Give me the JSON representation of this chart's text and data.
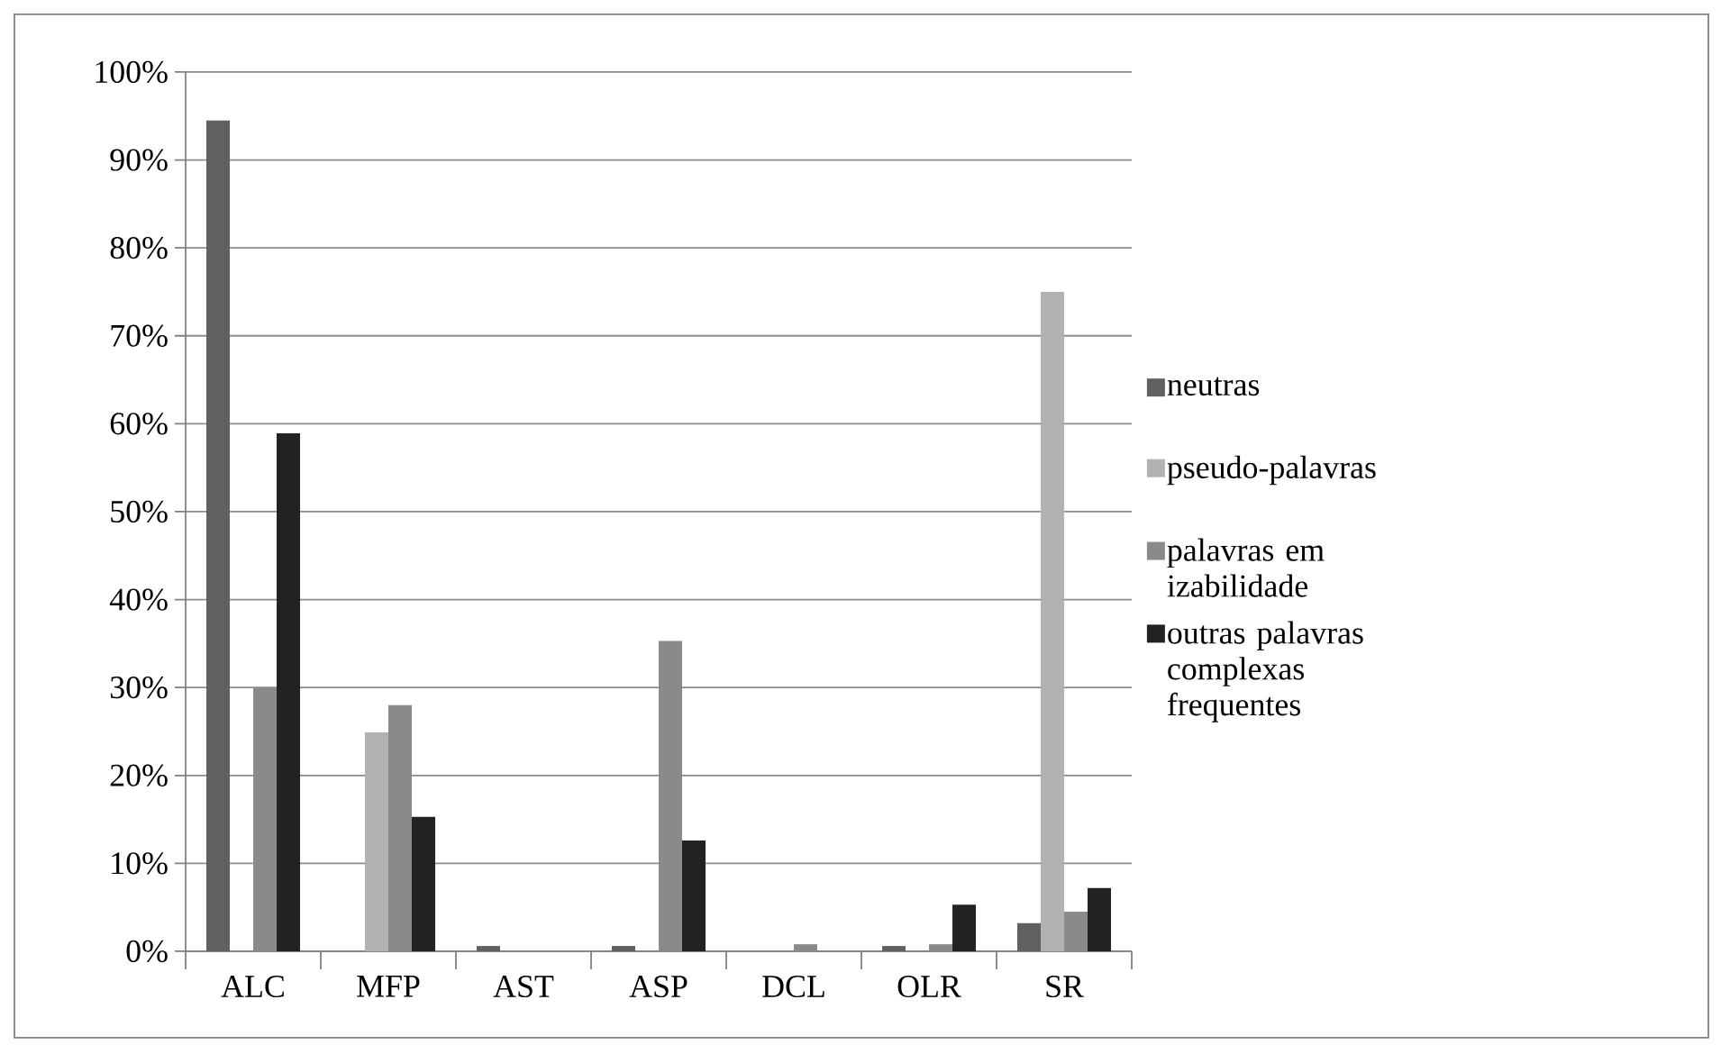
{
  "chart_data": {
    "type": "bar",
    "categories": [
      "ALC",
      "MFP",
      "AST",
      "ASP",
      "DCL",
      "OLR",
      "SR"
    ],
    "series": [
      {
        "name": "neutras",
        "color": "#606060",
        "values": [
          94.5,
          0,
          0.6,
          0.6,
          0,
          0.6,
          3.2
        ]
      },
      {
        "name": "pseudo-palavras",
        "color": "#b2b2b2",
        "values": [
          0,
          24.9,
          0,
          0,
          0,
          0,
          75
        ]
      },
      {
        "name": "palavras em izabilidade",
        "color": "#8a8a8a",
        "values": [
          30,
          28,
          0,
          35.3,
          0.8,
          0.8,
          4.5
        ]
      },
      {
        "name": "outras palavras complexas frequentes",
        "color": "#222222",
        "values": [
          58.9,
          15.3,
          0,
          12.6,
          0,
          5.3,
          7.2
        ]
      }
    ],
    "ylim": [
      0,
      100
    ],
    "yticks": [
      {
        "value": 0,
        "label": "0%"
      },
      {
        "value": 10,
        "label": "10%"
      },
      {
        "value": 20,
        "label": "20%"
      },
      {
        "value": 30,
        "label": "30%"
      },
      {
        "value": 40,
        "label": "40%"
      },
      {
        "value": 50,
        "label": "50%"
      },
      {
        "value": 60,
        "label": "60%"
      },
      {
        "value": 70,
        "label": "70%"
      },
      {
        "value": 80,
        "label": "80%"
      },
      {
        "value": 90,
        "label": "90%"
      },
      {
        "value": 100,
        "label": "100%"
      }
    ],
    "grid": "y",
    "legend": "right"
  }
}
